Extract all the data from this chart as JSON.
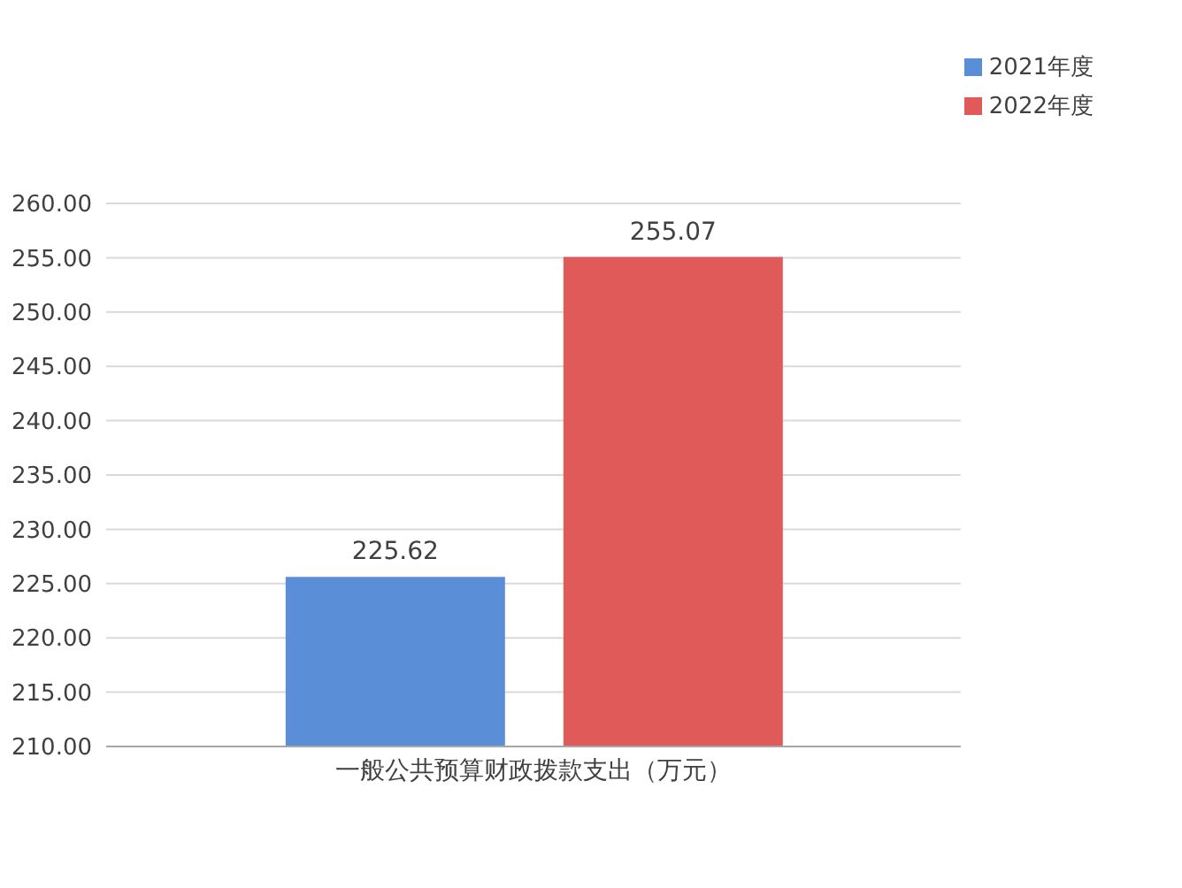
{
  "chart_data": {
    "type": "bar",
    "categories": [
      "一般公共预算财政拨款支出（万元）"
    ],
    "series": [
      {
        "name": "2021年度",
        "color": "#5a8fd8",
        "values": [
          225.62
        ]
      },
      {
        "name": "2022年度",
        "color": "#e05a5a",
        "values": [
          255.07
        ]
      }
    ],
    "ylim": [
      210,
      260
    ],
    "yticks": [
      {
        "value": 210,
        "label": "210.00"
      },
      {
        "value": 215,
        "label": "215.00"
      },
      {
        "value": 220,
        "label": "220.00"
      },
      {
        "value": 225,
        "label": "225.00"
      },
      {
        "value": 230,
        "label": "230.00"
      },
      {
        "value": 235,
        "label": "235.00"
      },
      {
        "value": 240,
        "label": "240.00"
      },
      {
        "value": 245,
        "label": "245.00"
      },
      {
        "value": 250,
        "label": "250.00"
      },
      {
        "value": 255,
        "label": "255.00"
      },
      {
        "value": 260,
        "label": "260.00"
      }
    ],
    "grid": "y",
    "legend": "top right",
    "data_labels": true
  }
}
